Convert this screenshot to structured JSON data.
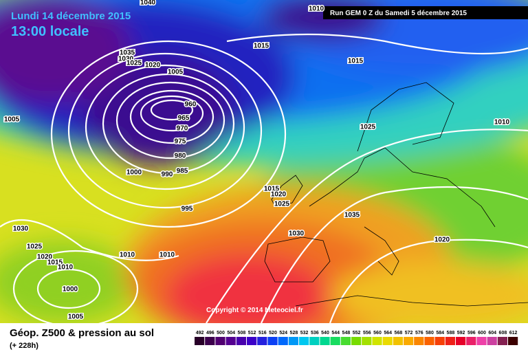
{
  "header": {
    "date": "Lundi 14 décembre 2015",
    "time": "13:00 locale",
    "run": "Run GEM 0 Z du Samedi 5 décembre 2015"
  },
  "copyright": "Copyright © 2014 Meteociel.fr",
  "footer": {
    "title": "Géop. Z500 & pression au sol",
    "lead": "(+ 228h)"
  },
  "scale": [
    "492",
    "496",
    "500",
    "504",
    "508",
    "512",
    "516",
    "520",
    "524",
    "528",
    "532",
    "536",
    "540",
    "544",
    "548",
    "552",
    "556",
    "560",
    "564",
    "568",
    "572",
    "576",
    "580",
    "584",
    "588",
    "592",
    "596",
    "600",
    "604",
    "608",
    "612"
  ],
  "isobars": [
    "1040",
    "1010",
    "1035",
    "1030",
    "1025",
    "1020",
    "1005",
    "1015",
    "1015",
    "960",
    "965",
    "970",
    "975",
    "980",
    "985",
    "990",
    "1000",
    "1005",
    "1025",
    "1010",
    "995",
    "1015",
    "1020",
    "1025",
    "1035",
    "1030",
    "1020",
    "1030",
    "1025",
    "1020",
    "1015",
    "1010",
    "1010",
    "1010",
    "1000",
    "1005"
  ]
}
